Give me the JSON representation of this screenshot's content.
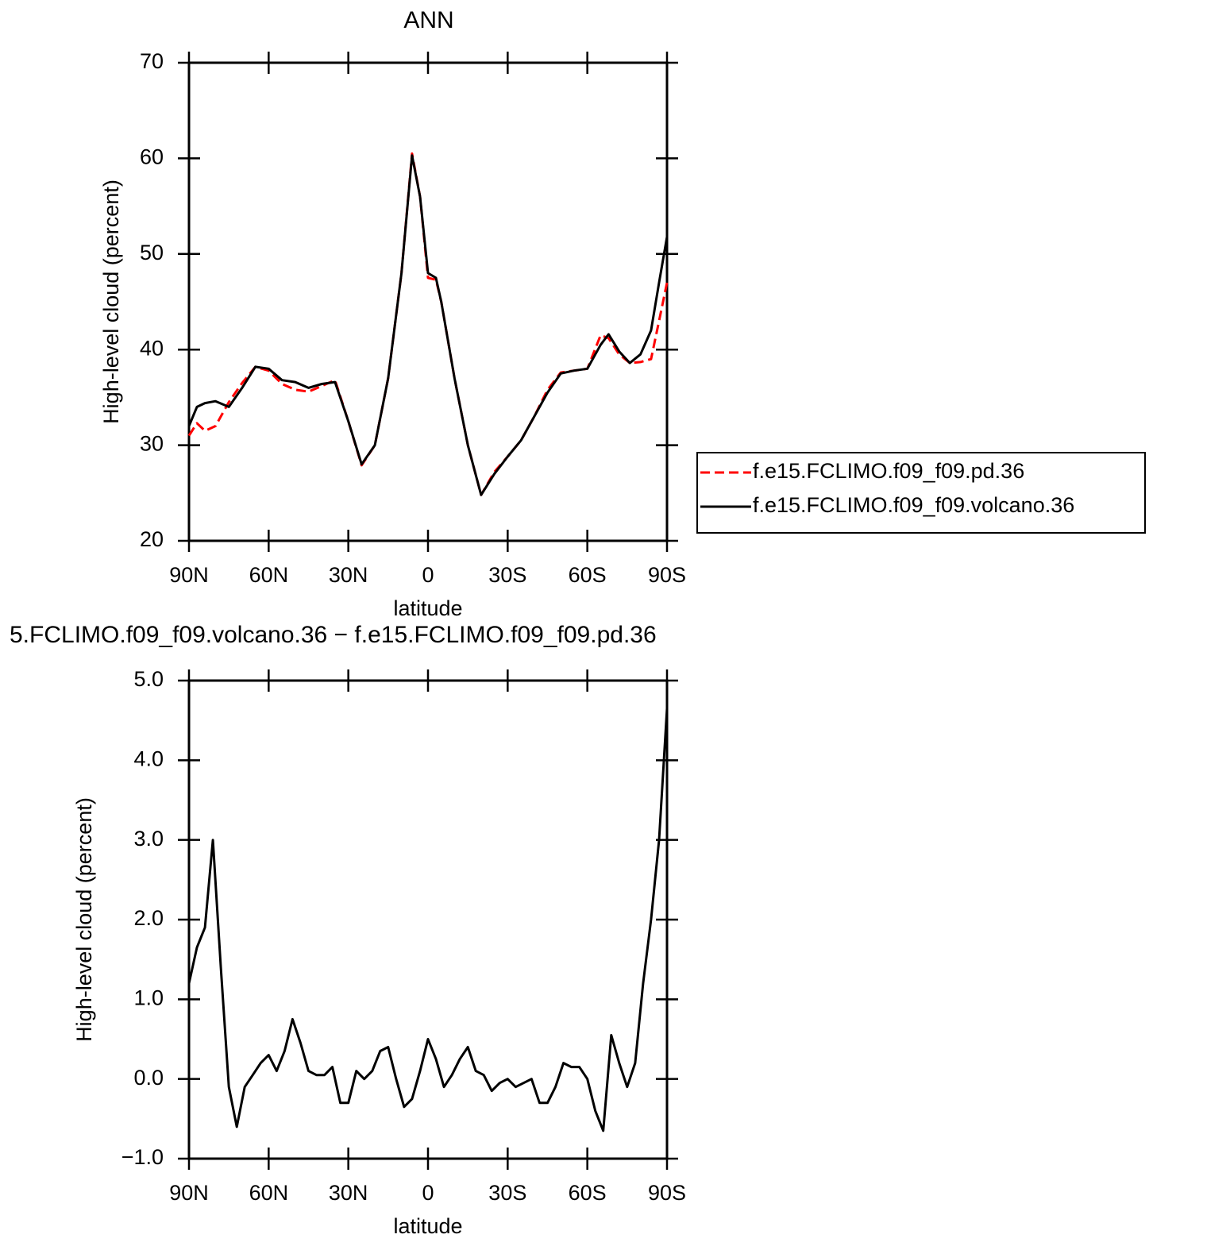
{
  "chart_data": [
    {
      "type": "line",
      "title": "ANN",
      "x_label": "latitude",
      "y_label": "High-level cloud (percent)",
      "x": [
        90,
        87,
        84,
        80,
        75,
        70,
        65,
        60,
        55,
        50,
        45,
        40,
        35,
        30,
        25,
        20,
        15,
        10,
        6,
        3,
        0,
        -3,
        -5,
        -10,
        -15,
        -20,
        -25,
        -30,
        -35,
        -40,
        -45,
        -50,
        -55,
        -60,
        -65,
        -68,
        -72,
        -76,
        -80,
        -84,
        -87,
        -90
      ],
      "series": [
        {
          "name": "f.e15.FCLIMO.f09_f09.pd.36",
          "color": "#ff0000",
          "dashed": true,
          "values": [
            31.0,
            32.3,
            31.5,
            32.0,
            34.5,
            36.5,
            38.2,
            37.8,
            36.4,
            35.8,
            35.6,
            36.2,
            36.8,
            32.5,
            27.9,
            30.0,
            37.0,
            48.0,
            60.5,
            56.0,
            47.5,
            47.3,
            45.0,
            37.0,
            30.0,
            24.8,
            27.2,
            28.8,
            30.5,
            33.0,
            35.8,
            37.6,
            37.8,
            38.0,
            41.5,
            41.2,
            39.5,
            38.6,
            38.7,
            39.0,
            43.0,
            47.0
          ]
        },
        {
          "name": "f.e15.FCLIMO.f09_f09.volcano.36",
          "color": "#000000",
          "dashed": false,
          "values": [
            32.0,
            34.0,
            34.4,
            34.6,
            34.0,
            36.0,
            38.2,
            38.0,
            36.8,
            36.6,
            36.0,
            36.4,
            36.6,
            32.5,
            28.0,
            30.0,
            37.0,
            48.0,
            60.3,
            56.0,
            48.0,
            47.5,
            45.0,
            37.0,
            30.0,
            24.8,
            27.0,
            28.8,
            30.5,
            33.0,
            35.5,
            37.5,
            37.8,
            38.0,
            40.5,
            41.6,
            39.8,
            38.6,
            39.5,
            42.0,
            47.0,
            51.8
          ]
        }
      ],
      "xlim": [
        90,
        -90
      ],
      "xticks": [
        {
          "value": 90,
          "label": "90N"
        },
        {
          "value": 60,
          "label": "60N"
        },
        {
          "value": 30,
          "label": "30N"
        },
        0,
        {
          "value": -30,
          "label": "30S"
        },
        {
          "value": -60,
          "label": "60S"
        },
        {
          "value": -90,
          "label": "90S"
        }
      ],
      "ylim": [
        20,
        70
      ],
      "yticks": [
        20,
        30,
        40,
        50,
        60,
        70
      ],
      "legend": "right"
    },
    {
      "type": "line",
      "title": "5.FCLIMO.f09_f09.volcano.36 − f.e15.FCLIMO.f09_f09.pd.36",
      "x_label": "latitude",
      "y_label": "High-level cloud (percent)",
      "x": [
        90,
        87,
        84,
        81,
        78,
        75,
        72,
        69,
        66,
        63,
        60,
        57,
        54,
        51,
        48,
        45,
        42,
        39,
        36,
        33,
        30,
        27,
        24,
        21,
        18,
        15,
        12,
        9,
        6,
        3,
        0,
        -3,
        -6,
        -9,
        -12,
        -15,
        -18,
        -21,
        -24,
        -27,
        -30,
        -33,
        -36,
        -39,
        -42,
        -45,
        -48,
        -51,
        -54,
        -57,
        -60,
        -63,
        -66,
        -69,
        -72,
        -75,
        -78,
        -81,
        -84,
        -87,
        -90
      ],
      "values": [
        1.2,
        1.65,
        1.9,
        3.0,
        1.4,
        -0.1,
        -0.6,
        -0.1,
        0.05,
        0.2,
        0.3,
        0.1,
        0.35,
        0.75,
        0.45,
        0.1,
        0.05,
        0.05,
        0.15,
        -0.3,
        -0.3,
        0.1,
        0.0,
        0.1,
        0.35,
        0.4,
        0.0,
        -0.35,
        -0.25,
        0.1,
        0.5,
        0.25,
        -0.1,
        0.05,
        0.25,
        0.4,
        0.1,
        0.05,
        -0.15,
        -0.05,
        0.0,
        -0.1,
        -0.05,
        0.0,
        -0.3,
        -0.3,
        -0.1,
        0.2,
        0.15,
        0.15,
        0.0,
        -0.4,
        -0.65,
        0.55,
        0.2,
        -0.1,
        0.2,
        1.2,
        2.0,
        3.0,
        4.65
      ],
      "color": "#000000",
      "xlim": [
        90,
        -90
      ],
      "xticks": [
        {
          "value": 90,
          "label": "90N"
        },
        {
          "value": 60,
          "label": "60N"
        },
        {
          "value": 30,
          "label": "30N"
        },
        0,
        {
          "value": -30,
          "label": "30S"
        },
        {
          "value": -60,
          "label": "60S"
        },
        {
          "value": -90,
          "label": "90S"
        }
      ],
      "ylim": [
        -1,
        5
      ],
      "yticks": [
        {
          "value": -1,
          "label": "−1.0"
        },
        {
          "value": 0,
          "label": "0.0"
        },
        {
          "value": 1,
          "label": "1.0"
        },
        {
          "value": 2,
          "label": "2.0"
        },
        {
          "value": 3,
          "label": "3.0"
        },
        {
          "value": 4,
          "label": "4.0"
        },
        {
          "value": 5,
          "label": "5.0"
        }
      ]
    }
  ]
}
